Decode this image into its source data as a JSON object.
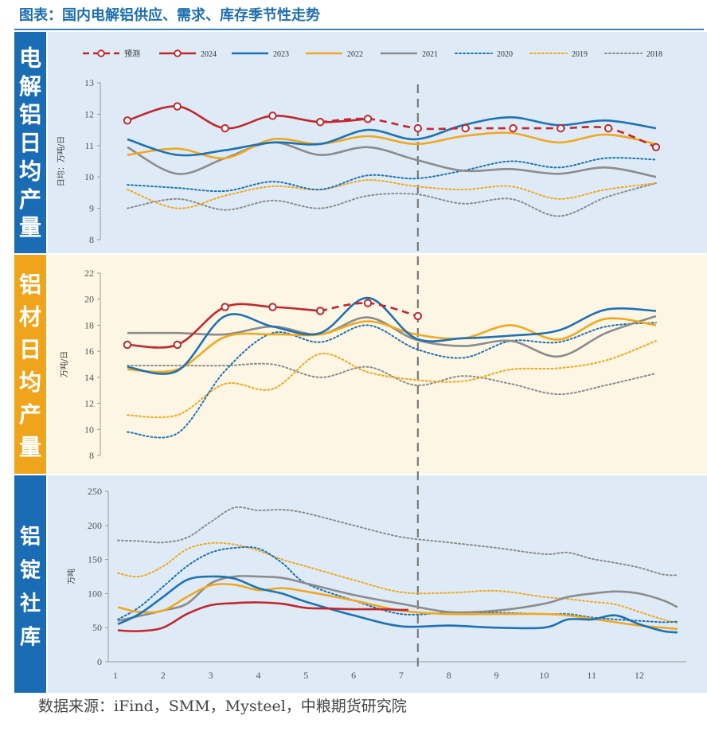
{
  "figure": {
    "title": "图表：国内电解铝供应、需求、库存季节性走势",
    "source": "数据来源：iFind，SMM，Mysteel，中粮期货研究院"
  },
  "colors": {
    "预测": "#c0282d",
    "2024": "#c0282d",
    "2023": "#1e72b4",
    "2022": "#f0a820",
    "2021": "#8c8c8c",
    "2020": "#1e72b4",
    "2019": "#f0a820",
    "2018": "#8c8c8c",
    "panel_blue": "#deebf7",
    "panel_cream": "#fdf6e4",
    "side_blue": "#1a6cb5",
    "side_orange": "#f0a41c"
  },
  "legend": [
    "预测",
    "2024",
    "2023",
    "2022",
    "2021",
    "2020",
    "2019",
    "2018"
  ],
  "chart_data": [
    {
      "type": "line",
      "side_label": "电解铝日均产量",
      "ylabel": "日均：万吨/日",
      "ylim": [
        8,
        13
      ],
      "yticks": [
        "8",
        "9",
        "10",
        "11",
        "12",
        "13"
      ],
      "xlim": [
        1,
        13
      ],
      "series": [
        {
          "name": "2018",
          "style": "dotted",
          "x": [
            1.25,
            2.3,
            3.3,
            4.3,
            5.3,
            6.3,
            7.3,
            8.3,
            9.3,
            10.3,
            11.3,
            12.35
          ],
          "values": [
            9.0,
            9.3,
            8.95,
            9.25,
            9.0,
            9.4,
            9.45,
            9.15,
            9.3,
            8.75,
            9.35,
            9.8
          ]
        },
        {
          "name": "2019",
          "style": "dotted",
          "x": [
            1.25,
            2.3,
            3.3,
            4.3,
            5.3,
            6.3,
            7.3,
            8.3,
            9.3,
            10.3,
            11.3,
            12.35
          ],
          "values": [
            9.6,
            9.0,
            9.4,
            9.7,
            9.6,
            9.9,
            9.7,
            9.6,
            9.7,
            9.3,
            9.6,
            9.8
          ]
        },
        {
          "name": "2020",
          "style": "dotted",
          "x": [
            1.25,
            2.3,
            3.3,
            4.3,
            5.3,
            6.3,
            7.3,
            8.3,
            9.3,
            10.3,
            11.3,
            12.35
          ],
          "values": [
            9.75,
            9.65,
            9.55,
            9.85,
            9.6,
            10.05,
            9.95,
            10.2,
            10.5,
            10.3,
            10.6,
            10.55
          ]
        },
        {
          "name": "2021",
          "style": "solid",
          "x": [
            1.25,
            2.3,
            3.3,
            4.3,
            5.3,
            6.3,
            7.3,
            8.3,
            9.3,
            10.3,
            11.3,
            12.35
          ],
          "values": [
            10.95,
            10.1,
            10.6,
            11.1,
            10.7,
            10.95,
            10.55,
            10.2,
            10.25,
            10.1,
            10.3,
            10.0
          ]
        },
        {
          "name": "2022",
          "style": "solid",
          "x": [
            1.25,
            2.3,
            3.3,
            4.3,
            5.3,
            6.3,
            7.3,
            8.3,
            9.3,
            10.3,
            11.3,
            12.35
          ],
          "values": [
            10.7,
            10.9,
            10.6,
            11.2,
            11.05,
            11.3,
            11.05,
            11.3,
            11.4,
            11.1,
            11.35,
            11.05
          ]
        },
        {
          "name": "2023",
          "style": "solid",
          "x": [
            1.25,
            2.3,
            3.3,
            4.3,
            5.3,
            6.3,
            7.3,
            8.3,
            9.3,
            10.3,
            11.3,
            12.35
          ],
          "values": [
            11.2,
            10.7,
            10.85,
            11.1,
            11.05,
            11.5,
            11.2,
            11.65,
            11.9,
            11.65,
            11.8,
            11.55
          ]
        },
        {
          "name": "2024",
          "style": "solid-marker",
          "x": [
            1.25,
            2.3,
            3.3,
            4.3,
            5.3,
            6.3
          ],
          "values": [
            11.8,
            12.25,
            11.55,
            11.95,
            11.75,
            11.85
          ]
        },
        {
          "name": "预测",
          "style": "dashed-marker",
          "x": [
            5.3,
            6.3,
            7.35,
            8.35,
            9.35,
            10.35,
            11.35,
            12.35
          ],
          "values": [
            11.75,
            11.85,
            11.55,
            11.55,
            11.55,
            11.55,
            11.55,
            10.95
          ]
        }
      ]
    },
    {
      "type": "line",
      "side_label": "铝材日均产量",
      "ylabel": "万吨/日",
      "ylim": [
        8,
        22
      ],
      "yticks": [
        "8",
        "10",
        "12",
        "14",
        "16",
        "18",
        "20",
        "22"
      ],
      "xlim": [
        1,
        13
      ],
      "series": [
        {
          "name": "2018",
          "style": "dotted",
          "x": [
            1.25,
            2.3,
            3.3,
            4.3,
            5.3,
            6.3,
            7.3,
            8.3,
            9.3,
            10.3,
            11.3,
            12.35
          ],
          "values": [
            14.9,
            14.9,
            14.9,
            15.0,
            14.0,
            14.8,
            13.4,
            14.1,
            13.5,
            12.7,
            13.4,
            14.3
          ]
        },
        {
          "name": "2019",
          "style": "dotted",
          "x": [
            1.25,
            2.3,
            3.3,
            4.3,
            5.3,
            6.3,
            7.3,
            8.3,
            9.3,
            10.3,
            11.3,
            12.35
          ],
          "values": [
            11.1,
            11.1,
            13.5,
            13.1,
            15.8,
            14.4,
            13.8,
            13.7,
            14.6,
            14.7,
            15.3,
            16.8
          ]
        },
        {
          "name": "2020",
          "style": "dotted",
          "x": [
            1.25,
            2.3,
            3.3,
            4.3,
            5.3,
            6.3,
            7.3,
            8.3,
            9.3,
            10.3,
            11.3,
            12.35
          ],
          "values": [
            9.8,
            9.7,
            14.5,
            17.4,
            16.7,
            18.0,
            16.2,
            15.5,
            16.8,
            16.7,
            17.9,
            18.2
          ]
        },
        {
          "name": "2021",
          "style": "solid",
          "x": [
            1.25,
            2.3,
            3.3,
            4.3,
            5.3,
            6.3,
            7.3,
            8.3,
            9.3,
            10.3,
            11.3,
            12.35
          ],
          "values": [
            17.4,
            17.4,
            17.3,
            17.9,
            17.3,
            18.6,
            16.9,
            16.4,
            16.8,
            15.6,
            17.4,
            18.7
          ]
        },
        {
          "name": "2022",
          "style": "solid",
          "x": [
            1.25,
            2.3,
            3.3,
            4.3,
            5.3,
            6.3,
            7.3,
            8.3,
            9.3,
            10.3,
            11.3,
            12.35
          ],
          "values": [
            14.6,
            14.6,
            17.1,
            17.3,
            17.3,
            18.3,
            17.3,
            17.0,
            18.0,
            16.9,
            18.5,
            18.0
          ]
        },
        {
          "name": "2023",
          "style": "solid",
          "x": [
            1.25,
            2.3,
            3.3,
            4.3,
            5.3,
            6.3,
            7.3,
            8.3,
            9.3,
            10.3,
            11.3,
            12.35
          ],
          "values": [
            14.8,
            14.5,
            18.7,
            17.9,
            17.4,
            20.1,
            17.0,
            17.0,
            17.2,
            17.6,
            19.2,
            19.1
          ]
        },
        {
          "name": "2024",
          "style": "solid-marker",
          "x": [
            1.25,
            2.3,
            3.3,
            4.3,
            5.3
          ],
          "values": [
            16.5,
            16.5,
            19.4,
            19.4,
            19.1
          ]
        },
        {
          "name": "预测",
          "style": "dashed-marker",
          "x": [
            5.3,
            6.3,
            7.35
          ],
          "values": [
            19.1,
            19.7,
            18.7
          ]
        }
      ]
    },
    {
      "type": "line",
      "side_label": "铝锭社库",
      "ylabel": "万吨",
      "ylim": [
        0,
        250
      ],
      "yticks": [
        "0",
        "50",
        "100",
        "150",
        "200",
        "250"
      ],
      "xlim": [
        1,
        13
      ],
      "xticks": [
        "1",
        "2",
        "3",
        "4",
        "5",
        "6",
        "7",
        "8",
        "9",
        "10",
        "11",
        "12"
      ],
      "series": [
        {
          "name": "2018",
          "style": "dotted",
          "x": [
            1.05,
            1.5,
            2.0,
            2.5,
            3.0,
            3.5,
            4.0,
            4.5,
            5.0,
            6.0,
            7.0,
            8.0,
            9.0,
            10.0,
            10.5,
            11.0,
            11.5,
            12.0,
            12.5,
            12.8
          ],
          "values": [
            178,
            177,
            175,
            182,
            205,
            226,
            222,
            223,
            218,
            200,
            183,
            175,
            167,
            158,
            160,
            151,
            145,
            138,
            128,
            127
          ]
        },
        {
          "name": "2019",
          "style": "dotted",
          "x": [
            1.05,
            1.5,
            2.0,
            2.5,
            3.0,
            3.5,
            4.0,
            4.5,
            5.0,
            6.0,
            7.0,
            8.0,
            9.0,
            10.0,
            10.5,
            11.0,
            11.5,
            12.0,
            12.5,
            12.8
          ],
          "values": [
            130,
            125,
            140,
            165,
            174,
            172,
            163,
            150,
            140,
            120,
            102,
            101,
            104,
            95,
            92,
            88,
            84,
            73,
            62,
            57
          ]
        },
        {
          "name": "2020",
          "style": "dotted",
          "x": [
            1.05,
            1.5,
            2.0,
            2.5,
            3.0,
            3.5,
            4.0,
            4.5,
            5.0,
            6.0,
            7.0,
            8.0,
            9.0,
            10.0,
            10.5,
            11.0,
            11.5,
            12.0,
            12.5,
            12.8
          ],
          "values": [
            62,
            80,
            110,
            140,
            160,
            167,
            166,
            145,
            115,
            90,
            70,
            72,
            72,
            70,
            70,
            65,
            62,
            60,
            58,
            59
          ]
        },
        {
          "name": "2021",
          "style": "solid",
          "x": [
            1.05,
            1.5,
            2.0,
            2.5,
            3.0,
            3.5,
            4.0,
            4.5,
            5.0,
            6.0,
            7.0,
            8.0,
            9.0,
            10.0,
            10.5,
            11.0,
            11.5,
            12.0,
            12.5,
            12.8
          ],
          "values": [
            60,
            67,
            75,
            85,
            115,
            125,
            125,
            123,
            115,
            98,
            85,
            73,
            75,
            85,
            95,
            100,
            103,
            100,
            90,
            80
          ]
        },
        {
          "name": "2022",
          "style": "solid",
          "x": [
            1.05,
            1.5,
            2.0,
            2.5,
            3.0,
            3.5,
            4.0,
            4.5,
            5.0,
            6.0,
            7.0,
            8.0,
            9.0,
            10.0,
            10.5,
            11.0,
            11.5,
            12.0,
            12.5,
            12.8
          ],
          "values": [
            80,
            73,
            75,
            95,
            112,
            113,
            105,
            108,
            103,
            90,
            75,
            70,
            70,
            70,
            68,
            63,
            58,
            53,
            50,
            48
          ]
        },
        {
          "name": "2023",
          "style": "solid",
          "x": [
            1.05,
            1.5,
            2.0,
            2.5,
            3.0,
            3.5,
            4.0,
            4.5,
            5.0,
            6.0,
            7.0,
            8.0,
            9.0,
            10.0,
            10.5,
            11.0,
            11.5,
            12.0,
            12.5,
            12.8
          ],
          "values": [
            55,
            70,
            95,
            120,
            125,
            122,
            108,
            100,
            88,
            68,
            52,
            53,
            50,
            50,
            62,
            62,
            68,
            55,
            45,
            43
          ]
        },
        {
          "name": "2024",
          "style": "solid",
          "x": [
            1.05,
            1.5,
            2.0,
            2.5,
            3.0,
            3.5,
            4.0,
            4.5,
            5.0,
            5.5,
            6.0,
            6.5,
            7.0,
            7.15
          ],
          "values": [
            46,
            45,
            50,
            70,
            83,
            86,
            87,
            85,
            79,
            78,
            77,
            77,
            76,
            76
          ]
        }
      ]
    }
  ]
}
